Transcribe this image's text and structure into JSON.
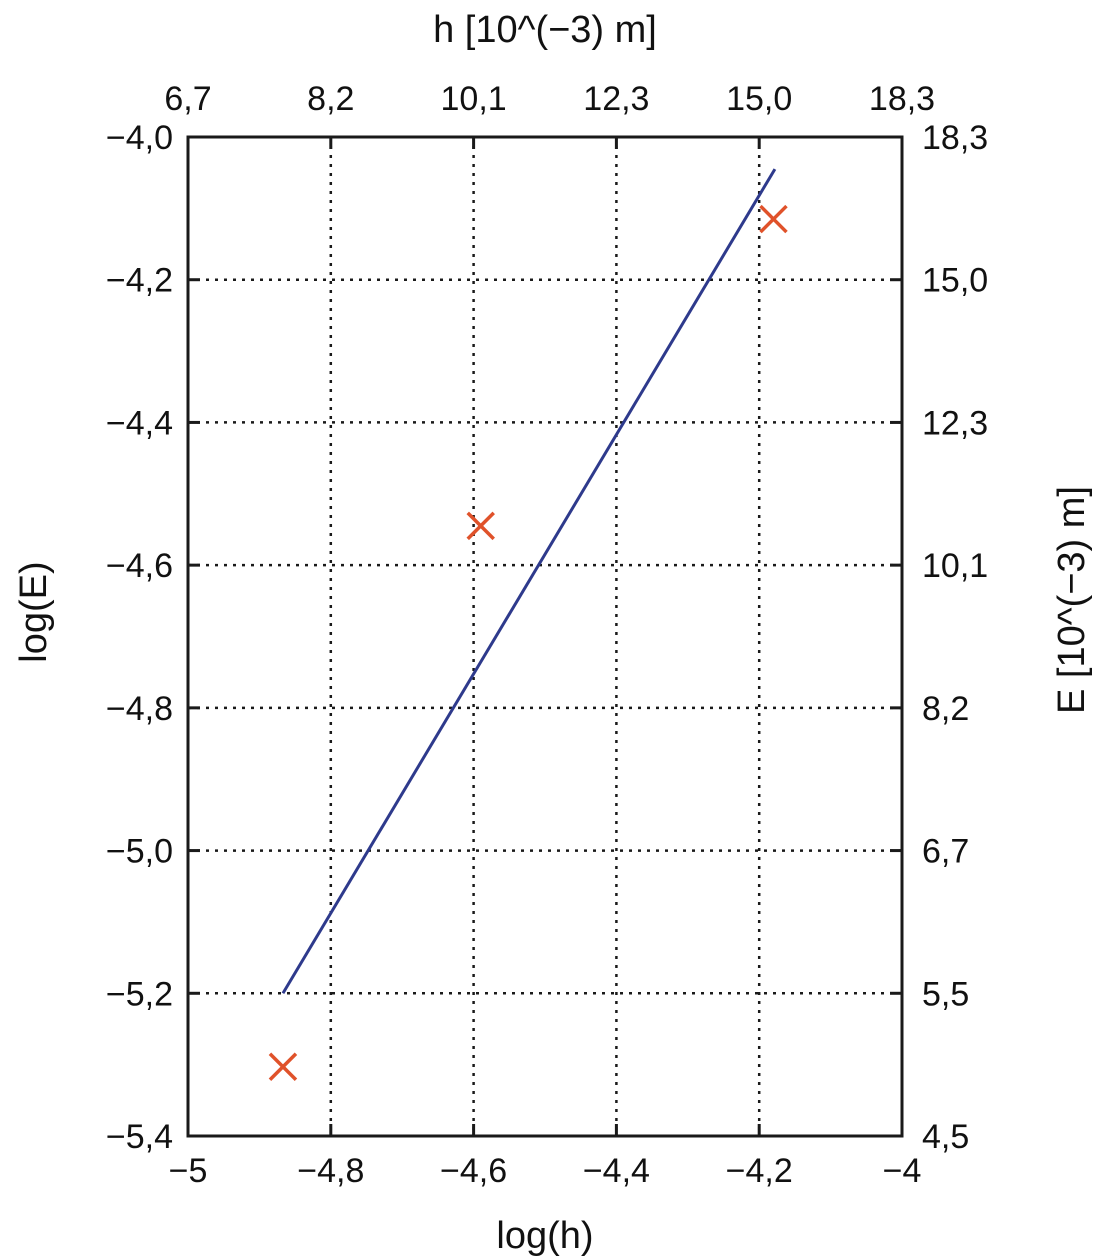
{
  "chart_data": {
    "type": "scatter",
    "xlabel": "log(h)",
    "ylabel": "log(E)",
    "top_xlabel": "h [10^(−3) m]",
    "right_ylabel": "E [10^(−3) m]",
    "xlim": [
      -5,
      -4
    ],
    "ylim": [
      -5.4,
      -4.0
    ],
    "x_ticks": [
      -5,
      -4.8,
      -4.6,
      -4.4,
      -4.2,
      -4
    ],
    "x_tick_labels": [
      "−5",
      "−4,8",
      "−4,6",
      "−4,4",
      "−4,2",
      "−4"
    ],
    "y_ticks": [
      -5.4,
      -5.2,
      -5.0,
      -4.8,
      -4.6,
      -4.4,
      -4.2,
      -4.0
    ],
    "y_tick_labels": [
      "−5,4",
      "−5,2",
      "−5,0",
      "−4,8",
      "−4,6",
      "−4,4",
      "−4,2",
      "−4,0"
    ],
    "top_tick_labels": [
      "6,7",
      "8,2",
      "10,1",
      "12,3",
      "15,0",
      "18,3"
    ],
    "right_tick_labels": [
      "4,5",
      "5,5",
      "6,7",
      "8,2",
      "10,1",
      "12,3",
      "15,0",
      "18,3"
    ],
    "grid": true,
    "series": [
      {
        "kind": "points",
        "marker": "x",
        "color": "#e0522a",
        "points": [
          [
            -4.867,
            -5.303
          ],
          [
            -4.59,
            -4.545
          ],
          [
            -4.18,
            -4.115
          ]
        ]
      },
      {
        "kind": "line",
        "color": "#2e3a8c",
        "points": [
          [
            -4.867,
            -5.2
          ],
          [
            -4.178,
            -4.045
          ]
        ]
      }
    ]
  }
}
